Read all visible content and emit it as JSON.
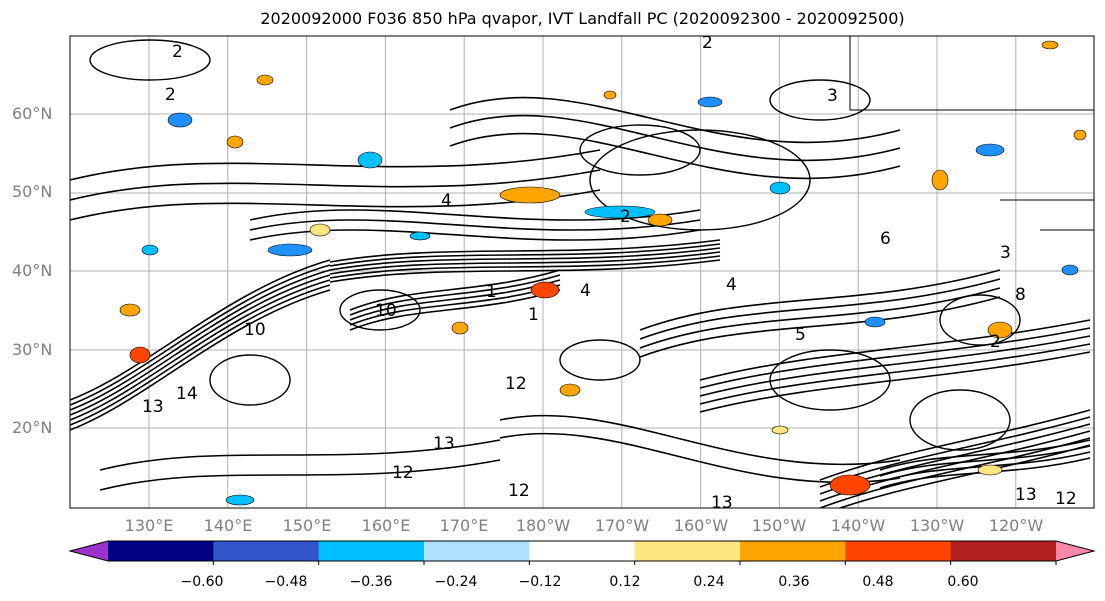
{
  "title": "2020092000 F036 850 hPa qvapor, IVT Landfall PC (2020092300 - 2020092500)",
  "map": {
    "lat_labels": [
      "60°N",
      "50°N",
      "40°N",
      "30°N",
      "20°N"
    ],
    "lon_labels": [
      "130°E",
      "140°E",
      "150°E",
      "160°E",
      "170°E",
      "180°W",
      "170°W",
      "160°W",
      "150°W",
      "140°W",
      "130°W",
      "120°W"
    ],
    "contour_labels": [
      "2",
      "2",
      "2",
      "3",
      "4",
      "4",
      "2",
      "1",
      "1",
      "10",
      "10",
      "12",
      "13",
      "13",
      "14",
      "12",
      "12",
      "13",
      "13",
      "12",
      "5",
      "6",
      "8",
      "3",
      "4",
      "2"
    ],
    "colors": {
      "land_lines": "#000000",
      "grid": "#b0b0b0",
      "negative_strong": "#1e90ff",
      "negative_light": "#00bfff",
      "positive_light": "#ffe680",
      "positive": "#ffa500",
      "positive_strong": "#ff4500"
    }
  },
  "colorbar": {
    "tick_labels": [
      "−0.60",
      "−0.48",
      "−0.36",
      "−0.24",
      "−0.12",
      "0.12",
      "0.24",
      "0.36",
      "0.48",
      "0.60"
    ],
    "colors": [
      "#9933cc",
      "#000080",
      "#3355cc",
      "#00bfff",
      "#b0e0ff",
      "#ffffff",
      "#ffe680",
      "#ffa500",
      "#ff4500",
      "#b22222",
      "#ff88aa"
    ]
  }
}
